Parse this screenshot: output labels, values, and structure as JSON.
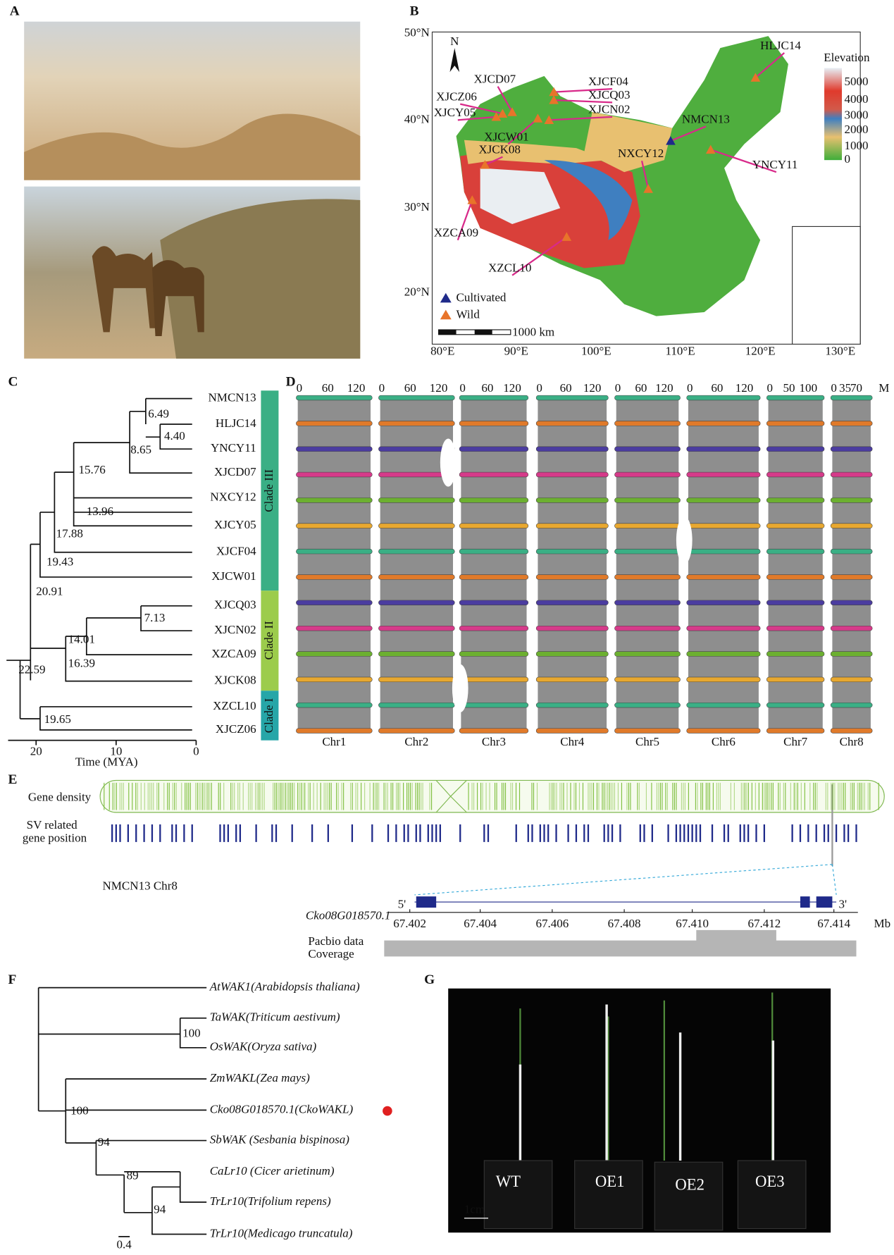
{
  "panels": {
    "a": "A",
    "b": "B",
    "c": "C",
    "d": "D",
    "e": "E",
    "f": "F",
    "g": "G"
  },
  "panel_b": {
    "lat_labels": [
      "50°N",
      "40°N",
      "30°N",
      "20°N"
    ],
    "lon_labels": [
      "80°E",
      "90°E",
      "100°E",
      "110°E",
      "120°E",
      "130°E"
    ],
    "north": "N",
    "legend_title": "Elevation",
    "elevation_ticks": [
      "5000",
      "4000",
      "3000",
      "2000",
      "1000",
      "0"
    ],
    "sites": [
      "HLJC14",
      "XJCD07",
      "XJCF04",
      "XJCQ03",
      "XJCZ06",
      "XJCN02",
      "XJCY05",
      "NMCN13",
      "XJCW01",
      "NXCY12",
      "XJCK08",
      "YNCY11",
      "XZCA09",
      "XZCL10"
    ],
    "key": [
      "Cultivated",
      "Wild"
    ],
    "scale": "1000 km"
  },
  "panel_c": {
    "taxa": [
      "NMCN13",
      "HLJC14",
      "YNCY11",
      "XJCD07",
      "NXCY12",
      "XJCY05",
      "XJCF04",
      "XJCW01",
      "XJCQ03",
      "XJCN02",
      "XZCA09",
      "XJCK08",
      "XZCL10",
      "XJCZ06"
    ],
    "node_ages": [
      "6.49",
      "4.40",
      "8.65",
      "15.76",
      "13.96",
      "17.88",
      "19.43",
      "20.91",
      "7.13",
      "14.01",
      "16.39",
      "22.59",
      "19.65"
    ],
    "clades": [
      "Clade III",
      "Clade II",
      "Clade I"
    ],
    "axis_ticks": [
      "20",
      "10",
      "0"
    ],
    "axis_label": "Time (MYA)"
  },
  "panel_d": {
    "chromosomes": [
      "Chr1",
      "Chr2",
      "Chr3",
      "Chr4",
      "Chr5",
      "Chr6",
      "Chr7",
      "Chr8"
    ],
    "scale_ticks": [
      [
        "0",
        "60",
        "120"
      ],
      [
        "0",
        "60",
        "120"
      ],
      [
        "0",
        "60",
        "120"
      ],
      [
        "0",
        "60",
        "120"
      ],
      [
        "0",
        "60",
        "120"
      ],
      [
        "0",
        "60",
        "120"
      ],
      [
        "0",
        "50",
        "100"
      ],
      [
        "0",
        "35",
        "70"
      ]
    ],
    "unit": "M"
  },
  "panel_e": {
    "gene_density": "Gene density",
    "sv_label": [
      "SV related",
      "gene position"
    ],
    "chromosome": "NMCN13  Chr8",
    "gene": "Cko08G018570.1",
    "five_prime": "5'",
    "three_prime": "3'",
    "positions": [
      "67.402",
      "67.404",
      "67.406",
      "67.408",
      "67.410",
      "67.412",
      "67.414"
    ],
    "unit": "Mb",
    "coverage_label": [
      "Pacbio data",
      "Coverage"
    ]
  },
  "panel_f": {
    "taxa": [
      "AtWAK1(Arabidopsis thaliana)",
      "TaWAK(Triticum aestivum)",
      "OsWAK(Oryza sativa)",
      "ZmWAKL(Zea mays)",
      "Cko08G018570.1(CkoWAKL)",
      "SbWAK (Sesbania bispinosa)",
      "CaLr10 (Cicer arietinum)",
      "TrLr10(Trifolium repens)",
      "TrLr10(Medicago truncatula)"
    ],
    "support": [
      "100",
      "100",
      "94",
      "89",
      "94"
    ],
    "scale": "0.4"
  },
  "panel_g": {
    "labels": [
      "WT",
      "OE1",
      "OE2",
      "OE3"
    ],
    "scale": "1cm"
  }
}
